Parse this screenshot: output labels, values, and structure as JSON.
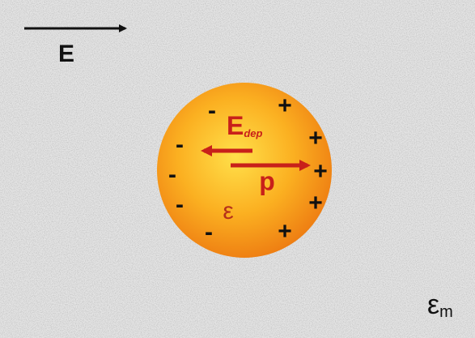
{
  "field": {
    "label": "E"
  },
  "sphere": {
    "permittivity": "ε",
    "negative_charges": [
      "-",
      "-",
      "-",
      "-",
      "-"
    ],
    "positive_charges": [
      "+",
      "+",
      "+",
      "+",
      "+"
    ]
  },
  "dep_force": {
    "label": "E",
    "subscript": "dep"
  },
  "dipole": {
    "label": "p"
  },
  "medium": {
    "label": "ε",
    "subscript": "m"
  }
}
